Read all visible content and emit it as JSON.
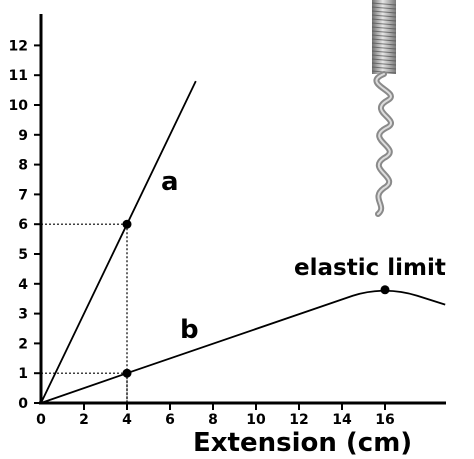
{
  "chart_data": {
    "type": "line",
    "title": "",
    "xlabel": "Extension (cm)",
    "ylabel": "",
    "xlim": [
      0,
      19
    ],
    "ylim": [
      0,
      13
    ],
    "x_ticks": [
      0,
      2,
      4,
      6,
      8,
      10,
      12,
      14,
      16
    ],
    "y_ticks": [
      0,
      1,
      2,
      3,
      4,
      5,
      6,
      7,
      8,
      9,
      10,
      11,
      12
    ],
    "grid": false,
    "series": [
      {
        "name": "a",
        "x": [
          0,
          4,
          7.2
        ],
        "y": [
          0,
          6,
          10.8
        ],
        "color": "#000000"
      },
      {
        "name": "b",
        "x": [
          0,
          4,
          14.5,
          16,
          17.5,
          18.8
        ],
        "y": [
          0,
          1,
          3.6,
          3.8,
          3.6,
          3.3
        ],
        "color": "#000000"
      }
    ],
    "points": [
      {
        "series": "a",
        "x": 4,
        "y": 6
      },
      {
        "series": "b",
        "x": 4,
        "y": 1
      },
      {
        "series": "b",
        "x": 16,
        "y": 3.8
      }
    ],
    "guide_lines": [
      {
        "x": 4,
        "y": 6
      },
      {
        "x": 4,
        "y": 1
      }
    ],
    "annotations": [
      {
        "text": "elastic limit",
        "x": 16,
        "y": 3.8
      }
    ]
  },
  "image": {
    "icon": "spring-icon"
  }
}
